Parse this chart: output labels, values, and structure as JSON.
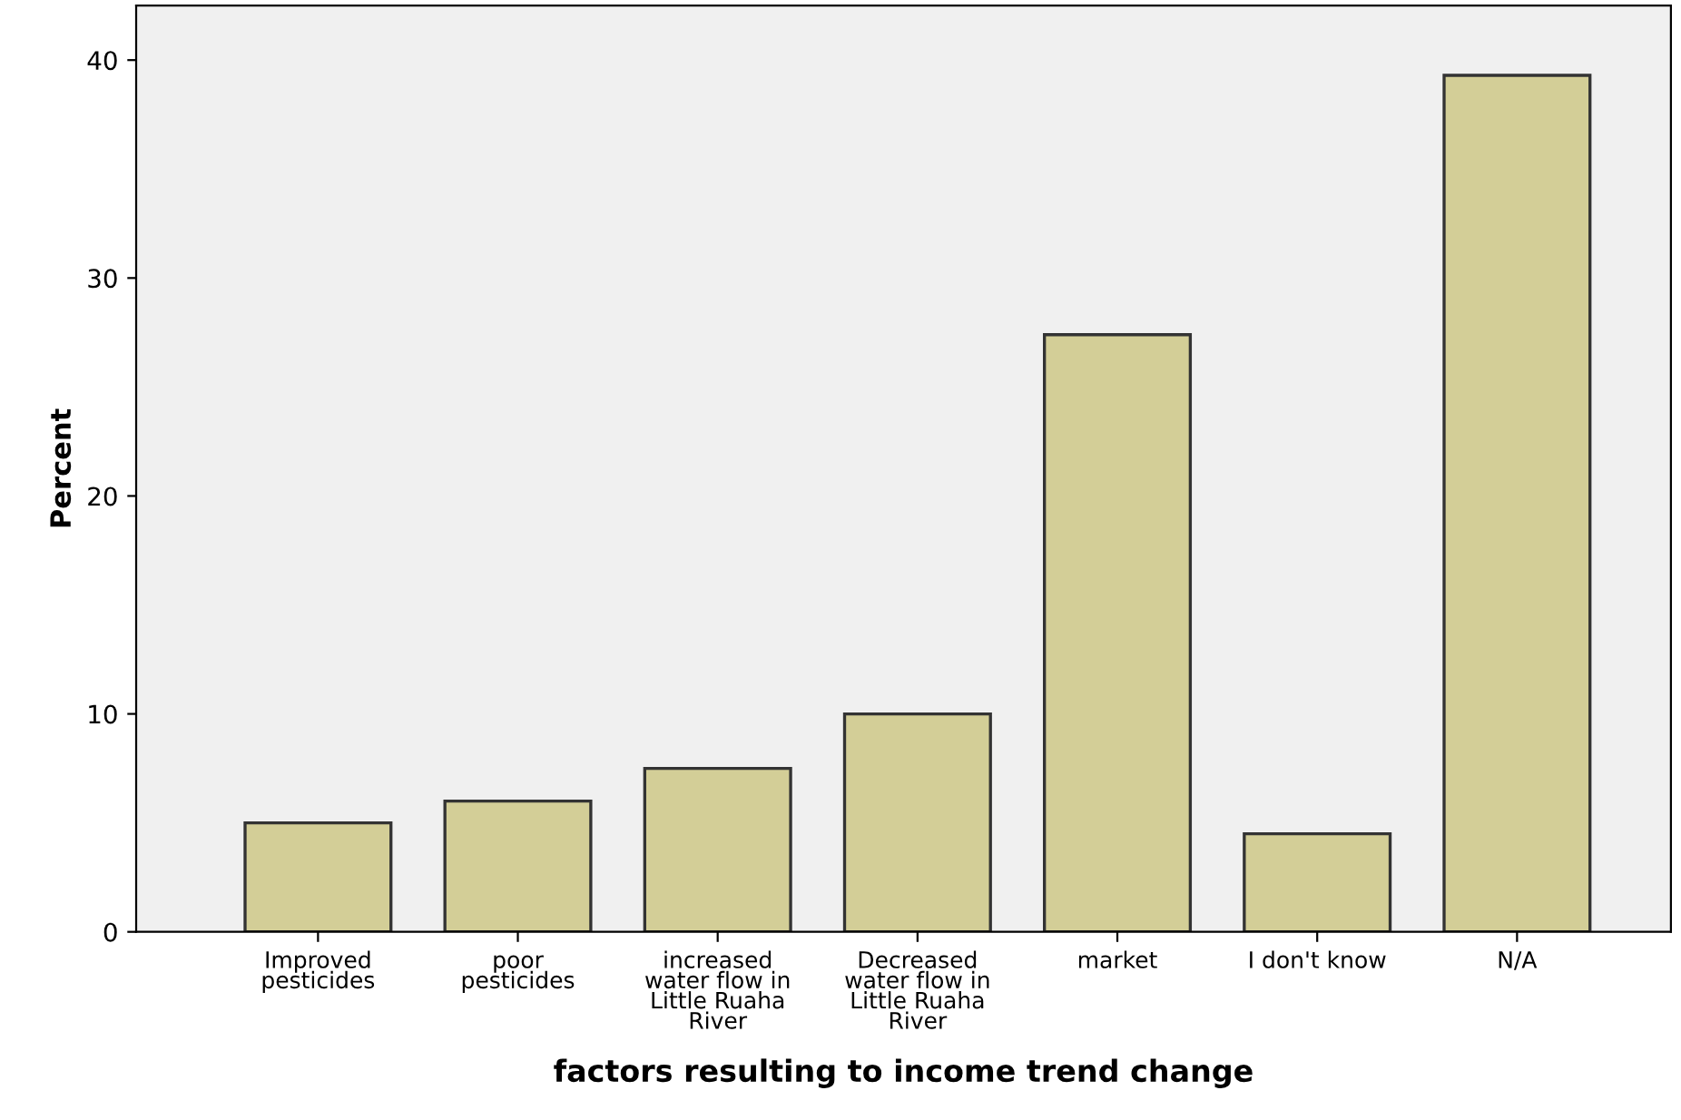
{
  "chart_data": {
    "type": "bar",
    "xlabel": "factors resulting to income trend change",
    "ylabel": "Percent",
    "categories": [
      "Improved\npesticides",
      "poor\npesticides",
      "increased\nwater flow in\nLittle Ruaha\nRiver",
      "Decreased\nwater flow in\nLittle Ruaha\nRiver",
      "market",
      "I don't know",
      "N/A"
    ],
    "values": [
      5.0,
      6.0,
      7.5,
      10.0,
      27.4,
      4.5,
      39.3
    ],
    "color": "#d3ce97",
    "ylim": [
      0,
      42.5
    ],
    "yticks": [
      0,
      10,
      20,
      30,
      40
    ],
    "grid": false,
    "legend": false
  }
}
